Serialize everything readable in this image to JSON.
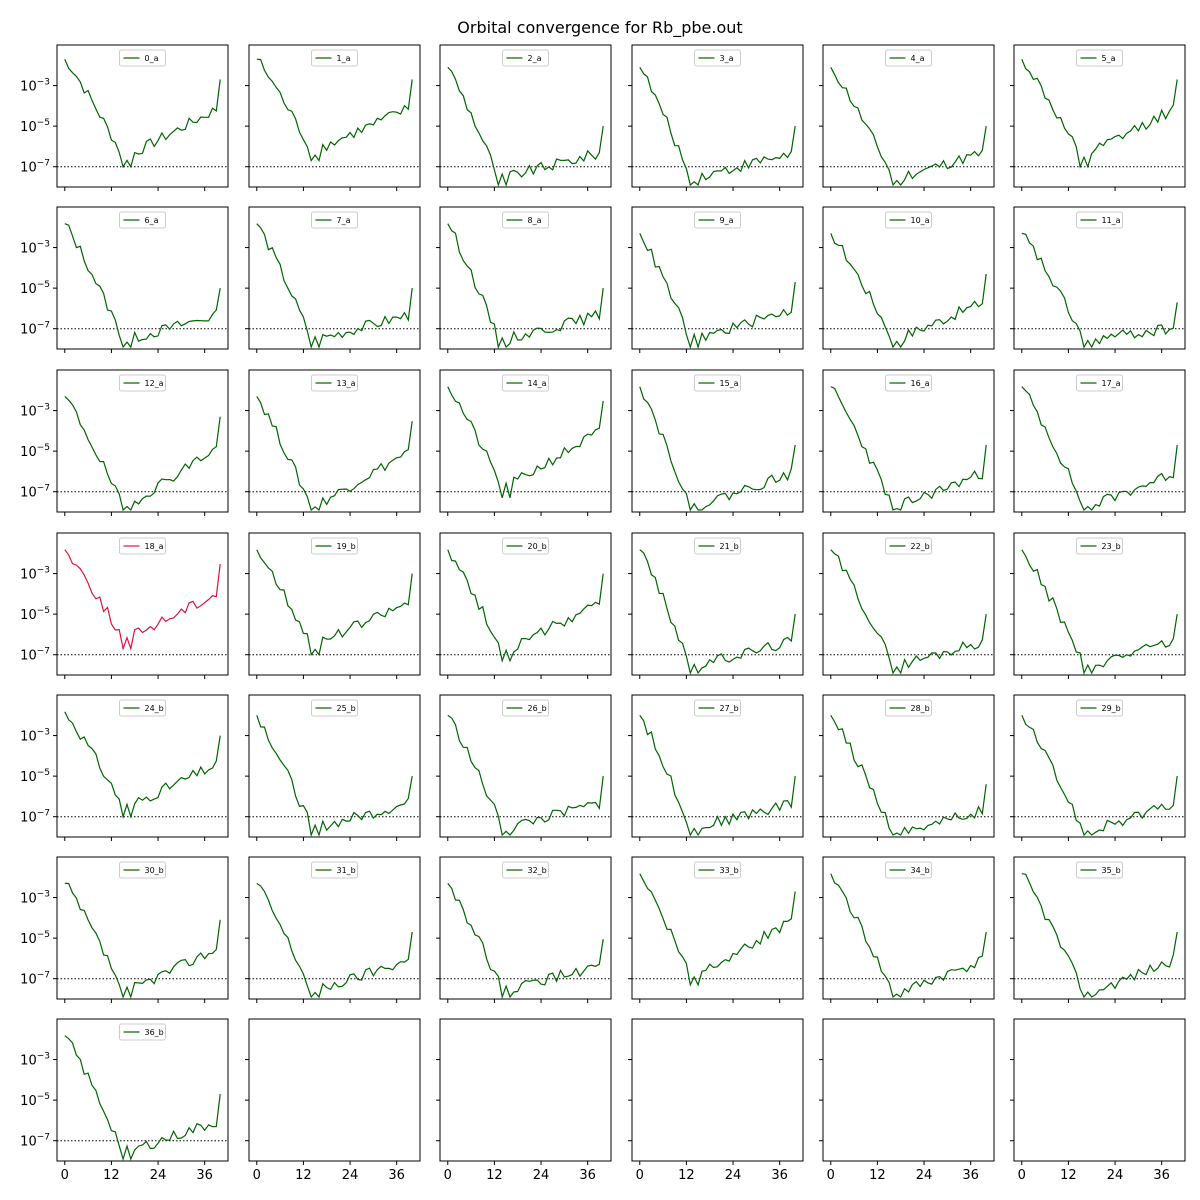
{
  "figure": {
    "title": "Orbital convergence for Rb_pbe.out"
  },
  "colors": {
    "normal": "#006400",
    "highlight": "#dc143c",
    "threshold": "#000000",
    "frame": "#000000"
  },
  "chart_data": {
    "type": "line",
    "layout": "7x6 grid of subplots, shared x and y axes, log-scale y",
    "title": "Orbital convergence for Rb_pbe.out",
    "xlabel": "",
    "ylabel": "",
    "yscale": "log",
    "ylim": [
      1e-08,
      0.1
    ],
    "xlim": [
      -2,
      42
    ],
    "xticks": [
      0,
      12,
      24,
      36
    ],
    "xtick_labels": [
      "0",
      "12",
      "24",
      "36"
    ],
    "yticks": [
      1e-07,
      1e-05,
      0.001
    ],
    "ytick_labels": [
      "10^-7",
      "10^-5",
      "10^-3"
    ],
    "threshold": 1e-07,
    "threshold_style": "dotted black horizontal line",
    "legend_placement": "upper center",
    "series": [
      {
        "name": "0_a",
        "color": "normal",
        "start": 0.02,
        "min": 1e-07,
        "end": 0.002
      },
      {
        "name": "1_a",
        "color": "normal",
        "start": 0.02,
        "min": 2e-07,
        "end": 0.002
      },
      {
        "name": "2_a",
        "color": "normal",
        "start": 0.008,
        "min": 1e-08,
        "end": 1e-05
      },
      {
        "name": "3_a",
        "color": "normal",
        "start": 0.008,
        "min": 1e-08,
        "end": 1e-05
      },
      {
        "name": "4_a",
        "color": "normal",
        "start": 0.008,
        "min": 1e-08,
        "end": 1e-05
      },
      {
        "name": "5_a",
        "color": "normal",
        "start": 0.02,
        "min": 1e-07,
        "end": 0.002
      },
      {
        "name": "6_a",
        "color": "normal",
        "start": 0.015,
        "min": 1e-08,
        "end": 1e-05
      },
      {
        "name": "7_a",
        "color": "normal",
        "start": 0.015,
        "min": 1e-08,
        "end": 1e-05
      },
      {
        "name": "8_a",
        "color": "normal",
        "start": 0.015,
        "min": 1e-08,
        "end": 1e-05
      },
      {
        "name": "9_a",
        "color": "normal",
        "start": 0.005,
        "min": 1e-08,
        "end": 2e-05
      },
      {
        "name": "10_a",
        "color": "normal",
        "start": 0.005,
        "min": 1e-08,
        "end": 5e-05
      },
      {
        "name": "11_a",
        "color": "normal",
        "start": 0.005,
        "min": 1e-08,
        "end": 2e-06
      },
      {
        "name": "12_a",
        "color": "normal",
        "start": 0.005,
        "min": 6e-09,
        "end": 0.0005
      },
      {
        "name": "13_a",
        "color": "normal",
        "start": 0.005,
        "min": 6e-09,
        "end": 0.0003
      },
      {
        "name": "14_a",
        "color": "normal",
        "start": 0.015,
        "min": 5e-08,
        "end": 0.003
      },
      {
        "name": "15_a",
        "color": "normal",
        "start": 0.015,
        "min": 6e-09,
        "end": 2e-05
      },
      {
        "name": "16_a",
        "color": "normal",
        "start": 0.015,
        "min": 6e-09,
        "end": 2e-05
      },
      {
        "name": "17_a",
        "color": "normal",
        "start": 0.015,
        "min": 6e-09,
        "end": 2e-05
      },
      {
        "name": "18_a",
        "color": "highlight",
        "start": 0.015,
        "min": 2e-07,
        "end": 0.003
      },
      {
        "name": "19_b",
        "color": "normal",
        "start": 0.015,
        "min": 1e-07,
        "end": 0.001
      },
      {
        "name": "20_b",
        "color": "normal",
        "start": 0.015,
        "min": 5e-08,
        "end": 0.001
      },
      {
        "name": "21_b",
        "color": "normal",
        "start": 0.015,
        "min": 1e-08,
        "end": 1e-05
      },
      {
        "name": "22_b",
        "color": "normal",
        "start": 0.015,
        "min": 1e-08,
        "end": 1e-05
      },
      {
        "name": "23_b",
        "color": "normal",
        "start": 0.015,
        "min": 1e-08,
        "end": 1e-05
      },
      {
        "name": "24_b",
        "color": "normal",
        "start": 0.015,
        "min": 1e-07,
        "end": 0.001
      },
      {
        "name": "25_b",
        "color": "normal",
        "start": 0.01,
        "min": 1e-08,
        "end": 1e-05
      },
      {
        "name": "26_b",
        "color": "normal",
        "start": 0.01,
        "min": 1e-08,
        "end": 1e-05
      },
      {
        "name": "27_b",
        "color": "normal",
        "start": 0.01,
        "min": 1e-08,
        "end": 1e-05
      },
      {
        "name": "28_b",
        "color": "normal",
        "start": 0.01,
        "min": 6e-09,
        "end": 4e-06
      },
      {
        "name": "29_b",
        "color": "normal",
        "start": 0.01,
        "min": 6e-09,
        "end": 1e-05
      },
      {
        "name": "30_b",
        "color": "normal",
        "start": 0.005,
        "min": 8e-09,
        "end": 8e-05
      },
      {
        "name": "31_b",
        "color": "normal",
        "start": 0.005,
        "min": 8e-09,
        "end": 2e-05
      },
      {
        "name": "32_b",
        "color": "normal",
        "start": 0.005,
        "min": 1e-08,
        "end": 9e-06
      },
      {
        "name": "33_b",
        "color": "normal",
        "start": 0.015,
        "min": 5e-08,
        "end": 0.002
      },
      {
        "name": "34_b",
        "color": "normal",
        "start": 0.015,
        "min": 6e-09,
        "end": 2e-05
      },
      {
        "name": "35_b",
        "color": "normal",
        "start": 0.015,
        "min": 6e-09,
        "end": 2e-05
      },
      {
        "name": "36_b",
        "color": "normal",
        "start": 0.015,
        "min": 1e-08,
        "end": 2e-05
      }
    ]
  }
}
